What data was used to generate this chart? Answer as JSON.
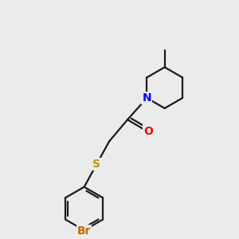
{
  "bg_color": "#ebebeb",
  "bond_color": "#1a1a1a",
  "bond_lw": 1.6,
  "N_color": "#0000ff",
  "O_color": "#ff0000",
  "S_color": "#b8960c",
  "Br_color": "#cc6600",
  "font_size": 10,
  "figsize": [
    3.0,
    3.0
  ],
  "dpi": 100,
  "xlim": [
    0,
    10
  ],
  "ylim": [
    0,
    10
  ]
}
